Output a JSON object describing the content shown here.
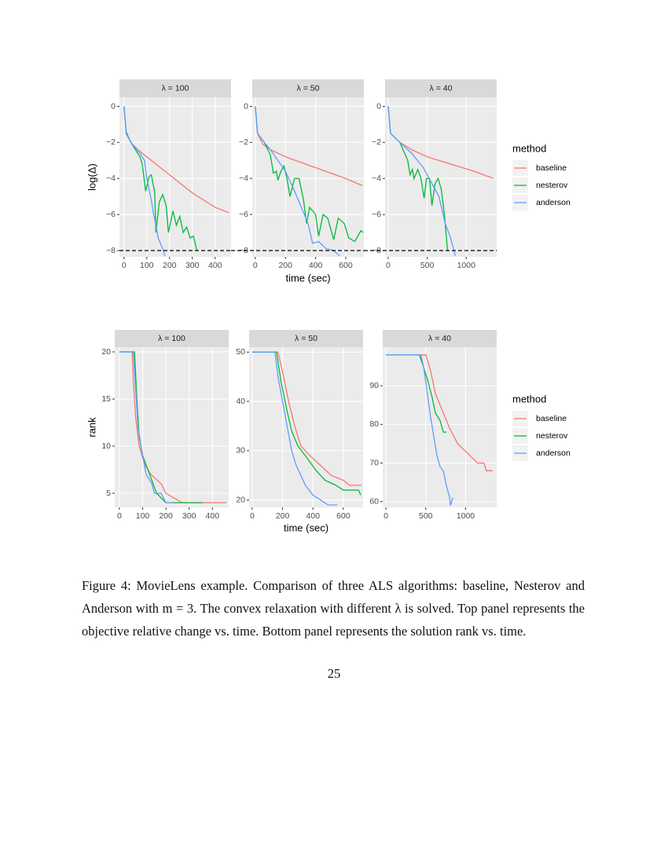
{
  "chart_data": [
    {
      "type": "line",
      "y_label": "log(Δ)",
      "x_label": "time (sec)",
      "legend_title": "method",
      "hline": -8,
      "facets": [
        {
          "label": "λ = 100",
          "xlim": [
            -20,
            470
          ],
          "xticks": [
            0,
            100,
            200,
            300,
            400
          ],
          "ylim": [
            -8.35,
            0.5
          ],
          "yticks": [
            0,
            {
              "value": -2,
              "label": "−2"
            },
            {
              "value": -4,
              "label": "−4"
            },
            {
              "value": -6,
              "label": "−6"
            },
            {
              "value": -8,
              "label": "−8"
            }
          ],
          "series": [
            {
              "name": "baseline",
              "color": "#F8766D",
              "x": [
                0,
                10,
                30,
                60,
                100,
                150,
                200,
                250,
                300,
                350,
                400,
                460
              ],
              "values": [
                0,
                -1.5,
                -2,
                -2.4,
                -2.8,
                -3.3,
                -3.8,
                -4.3,
                -4.8,
                -5.2,
                -5.6,
                -5.9
              ]
            },
            {
              "name": "nesterov",
              "color": "#00BA38",
              "x": [
                0,
                10,
                40,
                70,
                80,
                95,
                110,
                120,
                135,
                140,
                155,
                170,
                185,
                195,
                215,
                230,
                245,
                260,
                275,
                290,
                305,
                320
              ],
              "values": [
                0,
                -1.5,
                -2.2,
                -2.8,
                -3.2,
                -4.7,
                -3.9,
                -3.8,
                -4.8,
                -7,
                -5.3,
                -4.9,
                -5.5,
                -7,
                -5.8,
                -6.6,
                -6.1,
                -7,
                -6.7,
                -7.3,
                -7.2,
                -8
              ]
            },
            {
              "name": "anderson",
              "color": "#619CFF",
              "x": [
                0,
                10,
                30,
                50,
                70,
                90,
                100,
                110,
                120,
                130,
                140,
                150,
                160,
                170,
                180
              ],
              "values": [
                0,
                -1.4,
                -2,
                -2.3,
                -2.6,
                -3,
                -4,
                -4.6,
                -5.2,
                -6,
                -6.6,
                -7.3,
                -7.6,
                -7.9,
                -8.3
              ]
            }
          ]
        },
        {
          "label": "λ = 50",
          "xlim": [
            -20,
            720
          ],
          "xticks": [
            0,
            200,
            400,
            600
          ],
          "ylim": [
            -8.35,
            0.5
          ],
          "yticks": [
            0,
            {
              "value": -2,
              "label": "−2"
            },
            {
              "value": -4,
              "label": "−4"
            },
            {
              "value": -6,
              "label": "−6"
            },
            {
              "value": -8,
              "label": "−8"
            }
          ],
          "series": [
            {
              "color": "#F8766D",
              "x": [
                0,
                15,
                50,
                100,
                200,
                300,
                400,
                500,
                600,
                710
              ],
              "values": [
                0,
                -1.5,
                -2.1,
                -2.4,
                -2.8,
                -3.1,
                -3.4,
                -3.7,
                -4,
                -4.4
              ]
            },
            {
              "color": "#00BA38",
              "x": [
                0,
                15,
                60,
                100,
                120,
                140,
                150,
                170,
                190,
                210,
                230,
                260,
                290,
                320,
                340,
                360,
                400,
                420,
                450,
                480,
                520,
                550,
                590,
                620,
                660,
                700,
                715
              ],
              "values": [
                0,
                -1.5,
                -2,
                -2.7,
                -3.7,
                -3.6,
                -4.1,
                -3.6,
                -3.3,
                -4,
                -5,
                -4,
                -4,
                -5.2,
                -6.5,
                -5.6,
                -6,
                -7.2,
                -6,
                -6.2,
                -7.4,
                -6.2,
                -6.5,
                -7.3,
                -7.5,
                -6.9,
                -7
              ]
            },
            {
              "color": "#619CFF",
              "x": [
                0,
                15,
                60,
                100,
                150,
                200,
                250,
                300,
                350,
                380,
                420,
                470,
                520,
                560
              ],
              "values": [
                0,
                -1.5,
                -2,
                -2.4,
                -3,
                -3.6,
                -4.5,
                -5.5,
                -6.5,
                -7.6,
                -7.5,
                -7.9,
                -8,
                -8.3
              ]
            }
          ]
        },
        {
          "label": "λ = 40",
          "xlim": [
            -40,
            1390
          ],
          "xticks": [
            0,
            500,
            1000
          ],
          "ylim": [
            -8.35,
            0.5
          ],
          "yticks": [
            0,
            {
              "value": -2,
              "label": "−2"
            },
            {
              "value": -4,
              "label": "−4"
            },
            {
              "value": -6,
              "label": "−6"
            },
            {
              "value": -8,
              "label": "−8"
            }
          ],
          "series": [
            {
              "color": "#F8766D",
              "x": [
                0,
                30,
                150,
                300,
                500,
                800,
                1100,
                1350
              ],
              "values": [
                0,
                -1.5,
                -2,
                -2.4,
                -2.8,
                -3.2,
                -3.6,
                -4
              ]
            },
            {
              "color": "#00BA38",
              "x": [
                0,
                30,
                150,
                250,
                280,
                310,
                330,
                380,
                420,
                460,
                490,
                530,
                560,
                600,
                640,
                680,
                720,
                760
              ],
              "values": [
                0,
                -1.5,
                -2,
                -3,
                -3.8,
                -3.5,
                -4,
                -3.5,
                -4,
                -5.1,
                -4,
                -4,
                -5.5,
                -4.3,
                -4,
                -4.6,
                -6,
                -8
              ]
            },
            {
              "color": "#619CFF",
              "x": [
                0,
                30,
                150,
                300,
                450,
                550,
                650,
                730,
                800,
                860
              ],
              "values": [
                0,
                -1.5,
                -2,
                -2.6,
                -3.4,
                -4.2,
                -5,
                -6.5,
                -7.3,
                -8.3
              ]
            }
          ]
        }
      ]
    },
    {
      "type": "line",
      "y_label": "rank",
      "x_label": "time (sec)",
      "legend_title": "method",
      "facets": [
        {
          "label": "λ = 100",
          "xlim": [
            -20,
            470
          ],
          "xticks": [
            0,
            100,
            200,
            300,
            400
          ],
          "ylim": [
            3.5,
            20.5
          ],
          "yticks": [
            5,
            10,
            15,
            20
          ],
          "series": [
            {
              "name": "baseline",
              "color": "#F8766D",
              "x": [
                0,
                55,
                60,
                70,
                85,
                110,
                135,
                180,
                200,
                270,
                460
              ],
              "values": [
                20,
                20,
                17,
                13,
                10,
                8,
                7,
                6,
                5,
                4,
                4
              ]
            },
            {
              "name": "nesterov",
              "color": "#00BA38",
              "x": [
                0,
                65,
                75,
                85,
                100,
                130,
                160,
                200,
                360
              ],
              "values": [
                20,
                20,
                15,
                11,
                9,
                7,
                5,
                4,
                4
              ]
            },
            {
              "name": "anderson",
              "color": "#619CFF",
              "x": [
                0,
                60,
                70,
                80,
                100,
                115,
                140,
                150,
                180,
                200,
                230
              ],
              "values": [
                20,
                20,
                16,
                12,
                9,
                7,
                6,
                5,
                5,
                4,
                4
              ]
            }
          ]
        },
        {
          "label": "λ = 50",
          "xlim": [
            -20,
            730
          ],
          "xticks": [
            0,
            200,
            400,
            600
          ],
          "ylim": [
            18.5,
            51
          ],
          "yticks": [
            20,
            30,
            40,
            50
          ],
          "series": [
            {
              "color": "#F8766D",
              "x": [
                0,
                170,
                200,
                240,
                280,
                320,
                380,
                450,
                520,
                600,
                640,
                720
              ],
              "values": [
                50,
                50,
                46,
                40,
                35,
                31,
                29,
                27,
                25,
                24,
                23,
                23
              ]
            },
            {
              "color": "#00BA38",
              "x": [
                0,
                160,
                190,
                230,
                260,
                300,
                350,
                420,
                480,
                550,
                600,
                700,
                715
              ],
              "values": [
                50,
                50,
                44,
                38,
                34,
                31,
                29,
                26,
                24,
                23,
                22,
                22,
                21
              ]
            },
            {
              "color": "#619CFF",
              "x": [
                0,
                150,
                170,
                200,
                230,
                260,
                290,
                350,
                400,
                450,
                500,
                560
              ],
              "values": [
                50,
                50,
                45,
                40,
                35,
                30,
                27,
                23,
                21,
                20,
                19,
                19
              ]
            }
          ]
        },
        {
          "label": "λ = 40",
          "xlim": [
            -40,
            1390
          ],
          "xticks": [
            0,
            500,
            1000
          ],
          "ylim": [
            58.5,
            100
          ],
          "yticks": [
            60,
            70,
            80,
            90
          ],
          "series": [
            {
              "color": "#F8766D",
              "x": [
                0,
                500,
                560,
                620,
                700,
                800,
                900,
                1000,
                1100,
                1150,
                1230,
                1260,
                1340
              ],
              "values": [
                98,
                98,
                94,
                88,
                84,
                79,
                75,
                73,
                71,
                70,
                70,
                68,
                68
              ]
            },
            {
              "color": "#00BA38",
              "x": [
                0,
                420,
                470,
                530,
                580,
                620,
                680,
                720,
                760
              ],
              "values": [
                98,
                98,
                95,
                91,
                87,
                83,
                81,
                78,
                78
              ]
            },
            {
              "color": "#619CFF",
              "x": [
                0,
                440,
                480,
                520,
                560,
                600,
                640,
                680,
                720,
                760,
                800,
                810,
                840
              ],
              "values": [
                98,
                98,
                94,
                88,
                82,
                77,
                72,
                69,
                68,
                64,
                61,
                59,
                61
              ]
            }
          ]
        }
      ]
    }
  ],
  "caption": "Figure 4: MovieLens example. Comparison of three ALS algorithms: baseline, Nesterov and Anderson with m = 3. The convex relaxation with different λ is solved. Top panel represents the objective relative change vs. time. Bottom panel represents the solution rank vs. time.",
  "page_number": "25"
}
